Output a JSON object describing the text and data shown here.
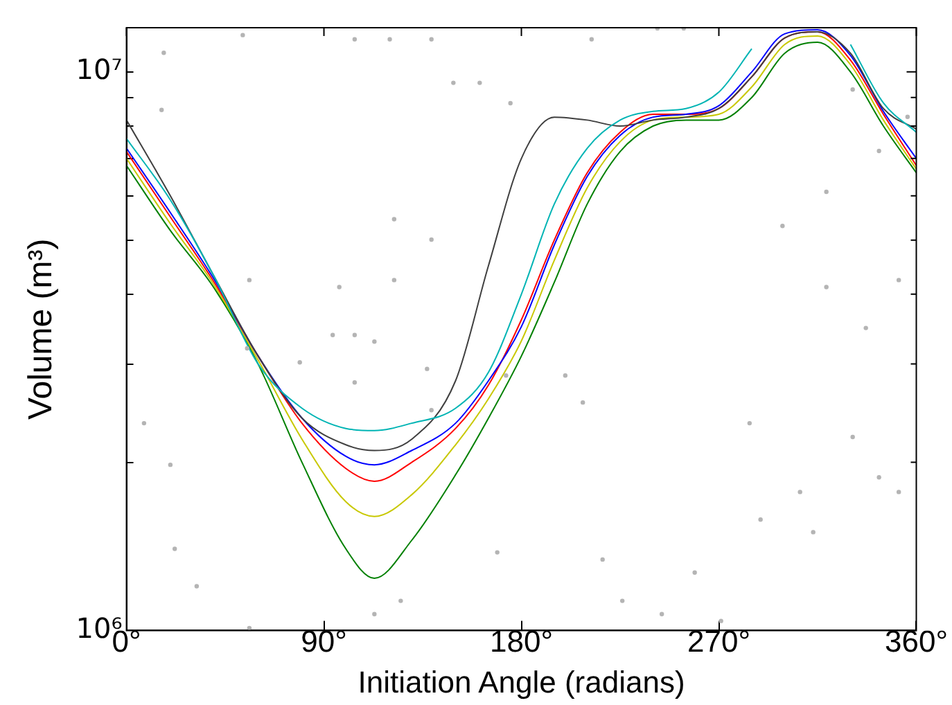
{
  "chart_data": {
    "type": "line",
    "xlabel": "Initiation Angle (radians)",
    "ylabel": "Volume (m³)",
    "log": "y",
    "grid": false,
    "legend": false,
    "xlim": [
      0,
      360
    ],
    "xticks": [
      {
        "value": 0,
        "label": "0°"
      },
      {
        "value": 90,
        "label": "90°"
      },
      {
        "value": 180,
        "label": "180°"
      },
      {
        "value": 270,
        "label": "270°"
      },
      {
        "value": 360,
        "label": "360°"
      }
    ],
    "ylim": [
      1000000,
      12000000
    ],
    "yticks": [
      {
        "value": 1000000,
        "label": "10⁶"
      },
      {
        "value": 2000000,
        "label": null
      },
      {
        "value": 3000000,
        "label": null
      },
      {
        "value": 4000000,
        "label": null
      },
      {
        "value": 5000000,
        "label": null
      },
      {
        "value": 6000000,
        "label": null
      },
      {
        "value": 7000000,
        "label": null
      },
      {
        "value": 8000000,
        "label": null
      },
      {
        "value": 9000000,
        "label": null
      },
      {
        "value": 10000000,
        "label": "10⁷"
      }
    ],
    "x": [
      0,
      20,
      40,
      60,
      80,
      100,
      113,
      130,
      150,
      165,
      180,
      195,
      210,
      225,
      240,
      255,
      270,
      285,
      300,
      315,
      330,
      345,
      360
    ],
    "series": [
      {
        "type": "scatter",
        "marker": "circle",
        "color": "#b4b4b4",
        "x": [
          17,
          16,
          53,
          104,
          120,
          139,
          149,
          161,
          175,
          212,
          242,
          254,
          331,
          343,
          356,
          56,
          55,
          79,
          94,
          97,
          113,
          137,
          104,
          104,
          122,
          122,
          139,
          173,
          169,
          200,
          208,
          217,
          226,
          244,
          259,
          271,
          289,
          307,
          319,
          337,
          343,
          352,
          352,
          331,
          20,
          56,
          22,
          32,
          113,
          125,
          284,
          313,
          8,
          139,
          299,
          319
        ],
        "values": [
          10820000,
          8550000,
          11640000,
          11440000,
          11440000,
          11440000,
          9560000,
          9560000,
          8790000,
          11440000,
          11970000,
          11970000,
          9300000,
          7220000,
          8310000,
          4240000,
          3200000,
          3020000,
          3380000,
          4120000,
          3290000,
          2940000,
          3380000,
          2780000,
          5450000,
          4240000,
          5010000,
          2860000,
          1380000,
          2860000,
          2560000,
          1340000,
          1130000,
          1070000,
          1270000,
          1040000,
          1580000,
          1770000,
          6100000,
          3480000,
          1880000,
          1770000,
          4240000,
          2220000,
          1980000,
          1010000,
          1400000,
          1200000,
          1070000,
          1130000,
          2350000,
          1500000,
          2350000,
          2480000,
          5300000,
          4120000
        ]
      },
      {
        "color": "#00b4b4",
        "values": [
          7600000,
          5900000,
          4300000,
          3000000,
          2500000,
          2300000,
          2280000,
          2350000,
          2500000,
          2900000,
          4000000,
          5800000,
          7300000,
          8200000,
          8500000,
          8600000,
          9200000,
          11000000,
          null,
          null,
          11200000,
          8800000,
          7800000
        ]
      },
      {
        "color": "#404040",
        "values": [
          8200000,
          6000000,
          4300000,
          3100000,
          2400000,
          2150000,
          2100000,
          2200000,
          2800000,
          4500000,
          7000000,
          8300000,
          8200000,
          8000000,
          8200000,
          8300000,
          8600000,
          9800000,
          11500000,
          11800000,
          10800000,
          8600000,
          7900000
        ]
      },
      {
        "color": "#0000ff",
        "values": [
          7300000,
          5600000,
          4250000,
          3100000,
          2400000,
          2050000,
          1980000,
          2100000,
          2350000,
          2800000,
          3500000,
          4900000,
          6500000,
          7700000,
          8300000,
          8400000,
          8700000,
          10000000,
          11700000,
          11900000,
          10700000,
          8500000,
          7000000
        ]
      },
      {
        "color": "#ff0000",
        "values": [
          7200000,
          5500000,
          4200000,
          3100000,
          2350000,
          1950000,
          1850000,
          2000000,
          2300000,
          2750000,
          3600000,
          5000000,
          6600000,
          7800000,
          8400000,
          8400000,
          8600000,
          9800000,
          11500000,
          11800000,
          10500000,
          8400000,
          6800000
        ]
      },
      {
        "color": "#c8c800",
        "values": [
          7000000,
          5350000,
          4150000,
          3050000,
          2200000,
          1700000,
          1600000,
          1750000,
          2150000,
          2600000,
          3300000,
          4600000,
          6200000,
          7500000,
          8200000,
          8300000,
          8400000,
          9400000,
          11200000,
          11600000,
          10300000,
          8200000,
          6700000
        ]
      },
      {
        "color": "#008000",
        "values": [
          6800000,
          5200000,
          4100000,
          3000000,
          2000000,
          1400000,
          1240000,
          1450000,
          1900000,
          2400000,
          3100000,
          4200000,
          5800000,
          7200000,
          8000000,
          8200000,
          8200000,
          9000000,
          10800000,
          11300000,
          10000000,
          8000000,
          6600000
        ]
      }
    ]
  }
}
